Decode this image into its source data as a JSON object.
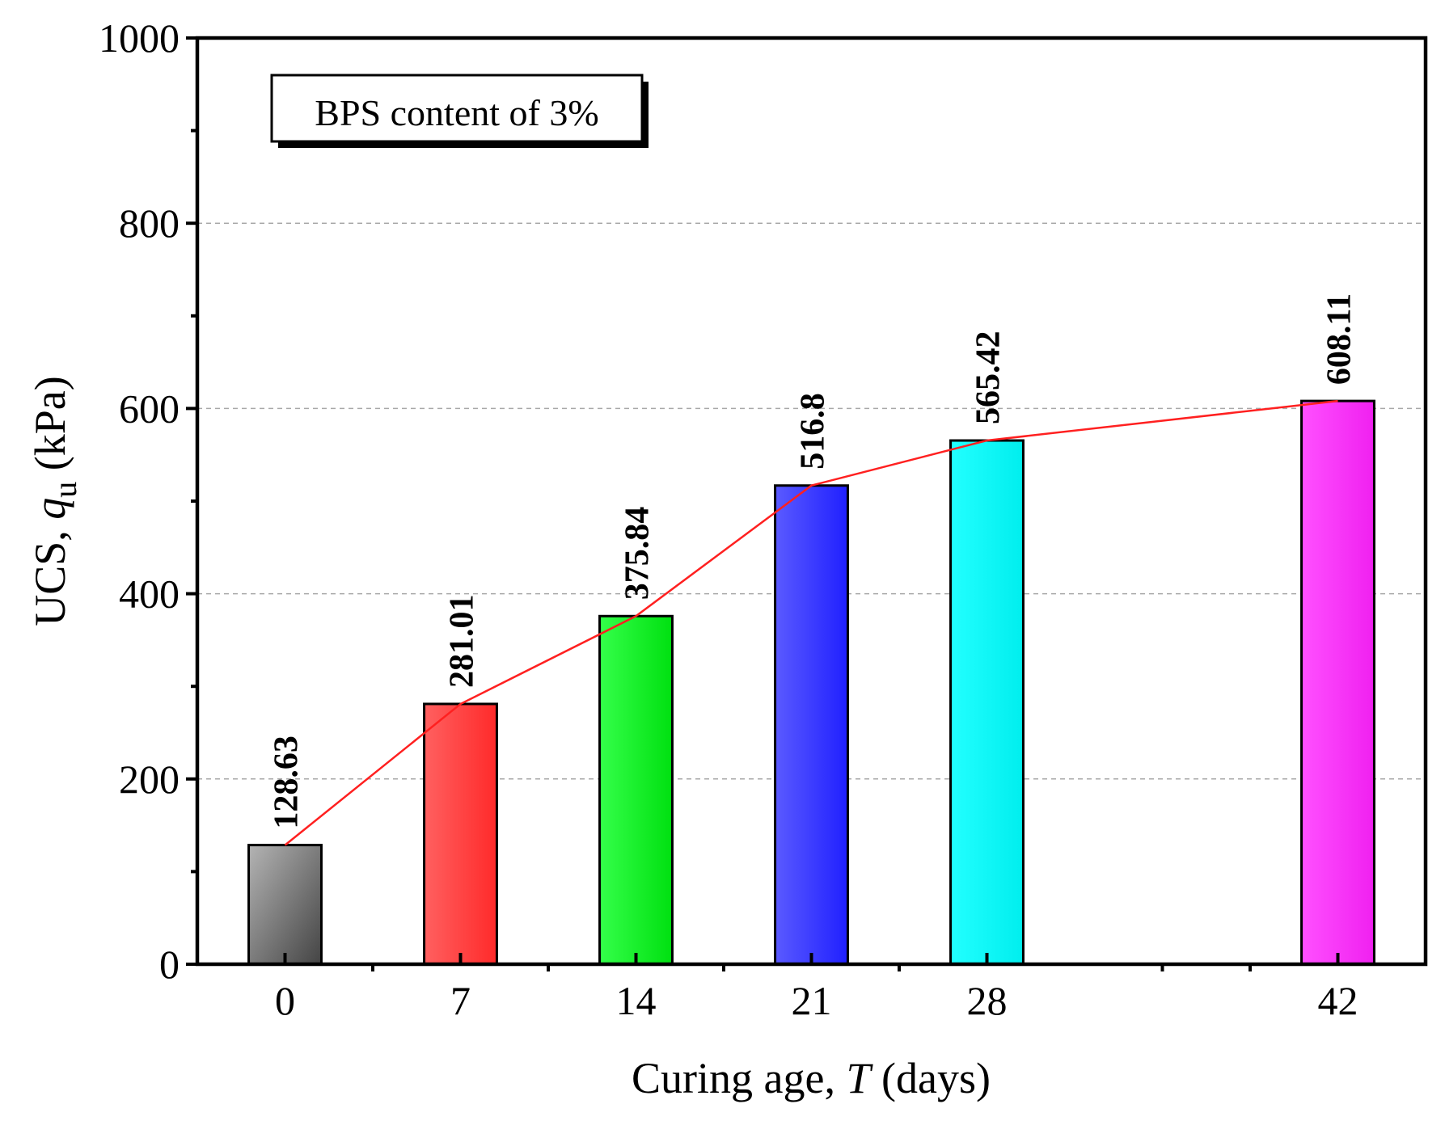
{
  "chart_data": {
    "type": "bar",
    "title": "",
    "annotation": "BPS content of 3%",
    "xlabel_prefix": "Curing age, ",
    "xlabel_var": "T",
    "xlabel_suffix": " (days)",
    "ylabel_prefix": "UCS, ",
    "ylabel_var": "q",
    "ylabel_sub": "u",
    "ylabel_suffix": " (kPa)",
    "x_axis_type": "numeric",
    "xlim": [
      -3.5,
      45.5
    ],
    "ylim": [
      0,
      1000
    ],
    "x_ticks": [
      0,
      7,
      14,
      21,
      28,
      42
    ],
    "x_minor_ticks": [
      3.5,
      10.5,
      17.5,
      24.5,
      35,
      38.5
    ],
    "y_ticks": [
      0,
      200,
      400,
      600,
      800,
      1000
    ],
    "y_minor_step": 100,
    "grid_y": [
      200,
      400,
      600,
      800
    ],
    "categories": [
      "0",
      "7",
      "14",
      "21",
      "28",
      "42"
    ],
    "x": [
      0,
      7,
      14,
      21,
      28,
      42
    ],
    "values": [
      128.63,
      281.01,
      375.84,
      516.8,
      565.42,
      608.11
    ],
    "value_labels": [
      "128.63",
      "281.01",
      "375.84",
      "516.8",
      "565.42",
      "608.11"
    ],
    "bar_width_days": 2.9,
    "bar_colors": [
      [
        "#b4b4b4",
        "#444444"
      ],
      [
        "#ff6060",
        "#ff2a2a"
      ],
      [
        "#34ff4a",
        "#00e010"
      ],
      [
        "#5a5aff",
        "#2020ff"
      ],
      [
        "#22ffff",
        "#00eeee"
      ],
      [
        "#ff50ff",
        "#f020f0"
      ]
    ],
    "line_color": "#ff2020",
    "grid_color": "#a8a8a8",
    "series": [
      {
        "name": "UCS",
        "type": "bar+line",
        "values": [
          128.63,
          281.01,
          375.84,
          516.8,
          565.42,
          608.11
        ]
      }
    ]
  }
}
